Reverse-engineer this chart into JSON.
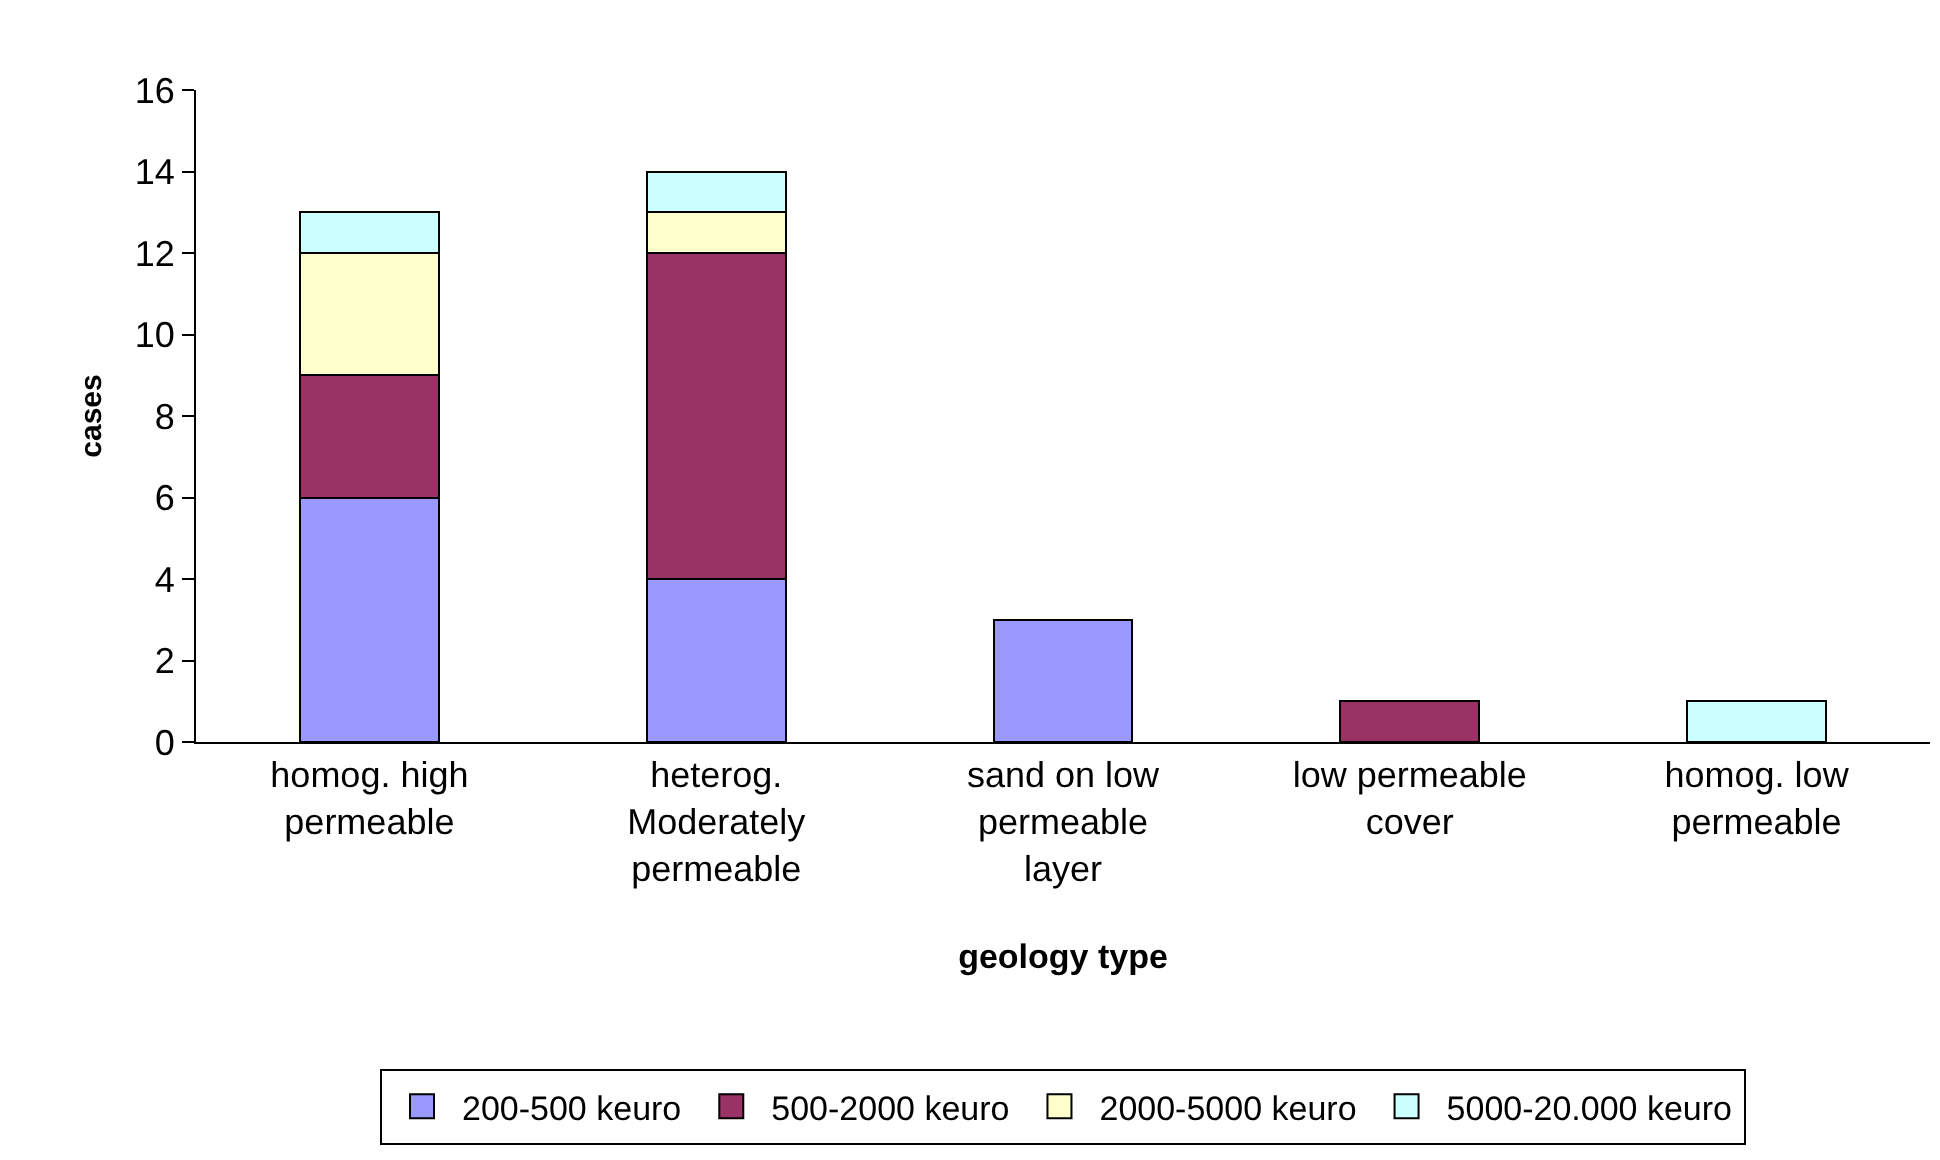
{
  "chart_data": {
    "type": "bar",
    "stacked": true,
    "xlabel": "geology type",
    "ylabel": "cases",
    "categories": [
      "homog. high permeable",
      "heterog. Moderately permeable",
      "sand on low permeable layer",
      "low permeable cover",
      "homog. low permeable"
    ],
    "series": [
      {
        "name": "200-500 keuro",
        "color": "#9999ff",
        "values": [
          6,
          4,
          3,
          null,
          null
        ]
      },
      {
        "name": "500-2000 keuro",
        "color": "#993366",
        "values": [
          3,
          8,
          null,
          1,
          null
        ]
      },
      {
        "name": "2000-5000 keuro",
        "color": "#ffffcc",
        "values": [
          3,
          1,
          null,
          null,
          null
        ]
      },
      {
        "name": "5000-20.000 keuro",
        "color": "#ccffff",
        "values": [
          1,
          1,
          null,
          null,
          1
        ]
      }
    ],
    "ylim": [
      0,
      16
    ],
    "yticks": [
      0,
      2,
      4,
      6,
      8,
      10,
      12,
      14,
      16
    ],
    "grid": false,
    "legend": "bottom"
  }
}
